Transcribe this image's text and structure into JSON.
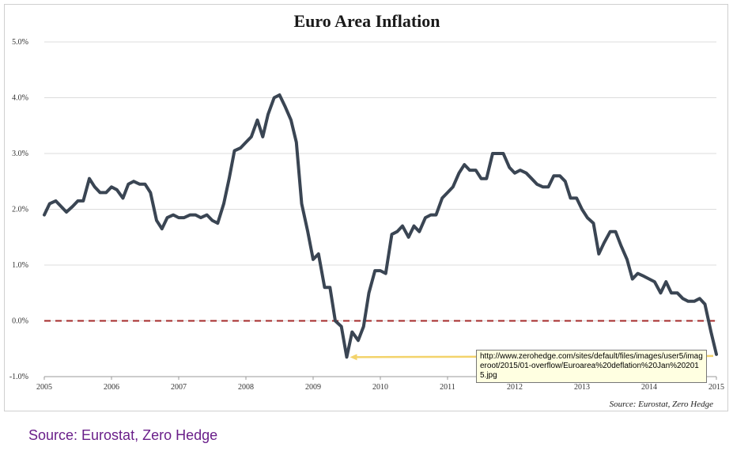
{
  "chart_data": {
    "type": "line",
    "title": "Euro Area Inflation",
    "ylim": [
      -1.0,
      5.0
    ],
    "y_ticks": [
      "5.0%",
      "4.0%",
      "3.0%",
      "2.0%",
      "1.0%",
      "0.0%",
      "-1.0%"
    ],
    "y_tick_values": [
      5.0,
      4.0,
      3.0,
      2.0,
      1.0,
      0.0,
      -1.0
    ],
    "x_ticks": [
      "2005",
      "2006",
      "2007",
      "2008",
      "2009",
      "2010",
      "2011",
      "2012",
      "2013",
      "2014",
      "2015"
    ],
    "x_tick_values": [
      2005,
      2006,
      2007,
      2008,
      2009,
      2010,
      2011,
      2012,
      2013,
      2014,
      2015
    ],
    "xlim": [
      2005,
      2015
    ],
    "grid": true,
    "series": [
      {
        "values": [
          [
            2005.0,
            1.9
          ],
          [
            2005.08,
            2.1
          ],
          [
            2005.17,
            2.15
          ],
          [
            2005.25,
            2.05
          ],
          [
            2005.33,
            1.95
          ],
          [
            2005.42,
            2.05
          ],
          [
            2005.5,
            2.15
          ],
          [
            2005.58,
            2.15
          ],
          [
            2005.67,
            2.55
          ],
          [
            2005.75,
            2.4
          ],
          [
            2005.83,
            2.3
          ],
          [
            2005.92,
            2.3
          ],
          [
            2006.0,
            2.4
          ],
          [
            2006.08,
            2.35
          ],
          [
            2006.17,
            2.2
          ],
          [
            2006.25,
            2.45
          ],
          [
            2006.33,
            2.5
          ],
          [
            2006.42,
            2.45
          ],
          [
            2006.5,
            2.45
          ],
          [
            2006.58,
            2.3
          ],
          [
            2006.67,
            1.8
          ],
          [
            2006.75,
            1.65
          ],
          [
            2006.83,
            1.85
          ],
          [
            2006.92,
            1.9
          ],
          [
            2007.0,
            1.85
          ],
          [
            2007.08,
            1.85
          ],
          [
            2007.17,
            1.9
          ],
          [
            2007.25,
            1.9
          ],
          [
            2007.33,
            1.85
          ],
          [
            2007.42,
            1.9
          ],
          [
            2007.5,
            1.8
          ],
          [
            2007.58,
            1.75
          ],
          [
            2007.67,
            2.1
          ],
          [
            2007.75,
            2.55
          ],
          [
            2007.83,
            3.05
          ],
          [
            2007.92,
            3.1
          ],
          [
            2008.0,
            3.2
          ],
          [
            2008.08,
            3.3
          ],
          [
            2008.17,
            3.6
          ],
          [
            2008.25,
            3.3
          ],
          [
            2008.33,
            3.7
          ],
          [
            2008.42,
            4.0
          ],
          [
            2008.5,
            4.05
          ],
          [
            2008.58,
            3.85
          ],
          [
            2008.67,
            3.6
          ],
          [
            2008.75,
            3.2
          ],
          [
            2008.83,
            2.1
          ],
          [
            2008.92,
            1.6
          ],
          [
            2009.0,
            1.1
          ],
          [
            2009.08,
            1.2
          ],
          [
            2009.17,
            0.6
          ],
          [
            2009.25,
            0.6
          ],
          [
            2009.33,
            0.0
          ],
          [
            2009.42,
            -0.1
          ],
          [
            2009.5,
            -0.65
          ],
          [
            2009.58,
            -0.2
          ],
          [
            2009.67,
            -0.35
          ],
          [
            2009.75,
            -0.1
          ],
          [
            2009.83,
            0.5
          ],
          [
            2009.92,
            0.9
          ],
          [
            2010.0,
            0.9
          ],
          [
            2010.08,
            0.85
          ],
          [
            2010.17,
            1.55
          ],
          [
            2010.25,
            1.6
          ],
          [
            2010.33,
            1.7
          ],
          [
            2010.42,
            1.5
          ],
          [
            2010.5,
            1.7
          ],
          [
            2010.58,
            1.6
          ],
          [
            2010.67,
            1.85
          ],
          [
            2010.75,
            1.9
          ],
          [
            2010.83,
            1.9
          ],
          [
            2010.92,
            2.2
          ],
          [
            2011.0,
            2.3
          ],
          [
            2011.08,
            2.4
          ],
          [
            2011.17,
            2.65
          ],
          [
            2011.25,
            2.8
          ],
          [
            2011.33,
            2.7
          ],
          [
            2011.42,
            2.7
          ],
          [
            2011.5,
            2.55
          ],
          [
            2011.58,
            2.55
          ],
          [
            2011.67,
            3.0
          ],
          [
            2011.75,
            3.0
          ],
          [
            2011.83,
            3.0
          ],
          [
            2011.92,
            2.75
          ],
          [
            2012.0,
            2.65
          ],
          [
            2012.08,
            2.7
          ],
          [
            2012.17,
            2.65
          ],
          [
            2012.25,
            2.55
          ],
          [
            2012.33,
            2.45
          ],
          [
            2012.42,
            2.4
          ],
          [
            2012.5,
            2.4
          ],
          [
            2012.58,
            2.6
          ],
          [
            2012.67,
            2.6
          ],
          [
            2012.75,
            2.5
          ],
          [
            2012.83,
            2.2
          ],
          [
            2012.92,
            2.2
          ],
          [
            2013.0,
            2.0
          ],
          [
            2013.08,
            1.85
          ],
          [
            2013.17,
            1.75
          ],
          [
            2013.25,
            1.2
          ],
          [
            2013.33,
            1.4
          ],
          [
            2013.42,
            1.6
          ],
          [
            2013.5,
            1.6
          ],
          [
            2013.58,
            1.35
          ],
          [
            2013.67,
            1.1
          ],
          [
            2013.75,
            0.75
          ],
          [
            2013.83,
            0.85
          ],
          [
            2013.92,
            0.8
          ],
          [
            2014.0,
            0.75
          ],
          [
            2014.08,
            0.7
          ],
          [
            2014.17,
            0.5
          ],
          [
            2014.25,
            0.7
          ],
          [
            2014.33,
            0.5
          ],
          [
            2014.42,
            0.5
          ],
          [
            2014.5,
            0.4
          ],
          [
            2014.58,
            0.35
          ],
          [
            2014.67,
            0.35
          ],
          [
            2014.75,
            0.4
          ],
          [
            2014.83,
            0.3
          ],
          [
            2014.92,
            -0.2
          ],
          [
            2015.0,
            -0.6
          ]
        ]
      }
    ],
    "colors": {
      "line": "#3a4553",
      "zero_line": "#a52a2a",
      "highlight_arrow": "#f3d36b",
      "grid": "#dcdcdc"
    },
    "highlight_level": -0.65,
    "source_text": "Source: Eurostat, Zero Hedge"
  },
  "tooltip_text": "http://www.zerohedge.com/sites/default/files/images/user5/imageroot/2015/01-overflow/Euroarea%20deflation%20Jan%202015.jpg",
  "caption": "Source: Eurostat, Zero Hedge"
}
